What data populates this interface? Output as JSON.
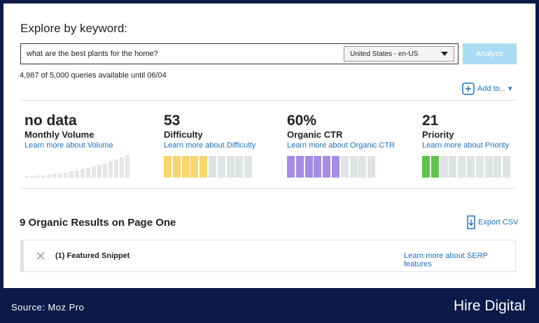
{
  "header": {
    "title": "Explore by keyword:"
  },
  "search": {
    "query": "what are the best plants for the home?",
    "locale": "United States - en-US",
    "button": "Analyze"
  },
  "quota": "4,987 of 5,000 queries available until 06/04",
  "add_to": "Add to...",
  "metrics": [
    {
      "value": "no data",
      "label": "Monthly Volume",
      "link": "Learn more about Volume"
    },
    {
      "value": "53",
      "label": "Difficulty",
      "link": "Learn more about Difficulty"
    },
    {
      "value": "60%",
      "label": "Organic CTR",
      "link": "Learn more about Organic CTR"
    },
    {
      "value": "21",
      "label": "Priority",
      "link": "Learn more about Priority"
    }
  ],
  "results": {
    "title": "9 Organic Results on Page One",
    "export": "Export CSV",
    "rows": [
      {
        "label": "(1) Featured Snippet",
        "link": "Learn more about SERP features"
      }
    ]
  },
  "footer": {
    "source": "Source: Moz Pro",
    "brand": "Hire Digital"
  }
}
